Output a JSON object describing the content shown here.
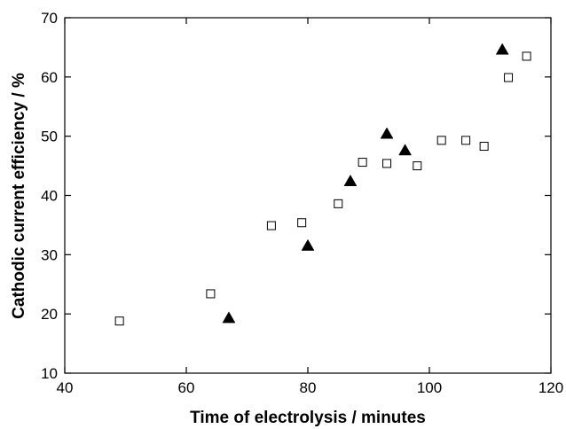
{
  "chart_data": {
    "type": "scatter",
    "title": "",
    "xlabel": "Time of electrolysis / minutes",
    "ylabel": "Cathodic current efficiency / %",
    "xlim": [
      40,
      120
    ],
    "ylim": [
      10,
      70
    ],
    "xticks": [
      40,
      60,
      80,
      100,
      120
    ],
    "yticks": [
      10,
      20,
      30,
      40,
      50,
      60,
      70
    ],
    "xtick_labels": [
      "40",
      "60",
      "80",
      "100",
      "120"
    ],
    "ytick_labels": [
      "10",
      "20",
      "30",
      "40",
      "50",
      "60",
      "70"
    ],
    "grid": false,
    "legend": "none",
    "series": [
      {
        "marker": "open-square",
        "color": "#000000",
        "points": [
          {
            "x": 49,
            "y": 18.8
          },
          {
            "x": 64,
            "y": 23.4
          },
          {
            "x": 74,
            "y": 34.9
          },
          {
            "x": 79,
            "y": 35.4
          },
          {
            "x": 85,
            "y": 38.6
          },
          {
            "x": 89,
            "y": 45.6
          },
          {
            "x": 93,
            "y": 45.4
          },
          {
            "x": 98,
            "y": 45.0
          },
          {
            "x": 102,
            "y": 49.3
          },
          {
            "x": 106,
            "y": 49.3
          },
          {
            "x": 109,
            "y": 48.3
          },
          {
            "x": 113,
            "y": 59.9
          },
          {
            "x": 116,
            "y": 63.5
          }
        ]
      },
      {
        "marker": "filled-triangle",
        "color": "#000000",
        "points": [
          {
            "x": 67,
            "y": 19.3
          },
          {
            "x": 80,
            "y": 31.5
          },
          {
            "x": 87,
            "y": 42.4
          },
          {
            "x": 93,
            "y": 50.4
          },
          {
            "x": 96,
            "y": 47.6
          },
          {
            "x": 112,
            "y": 64.6
          }
        ]
      }
    ]
  }
}
